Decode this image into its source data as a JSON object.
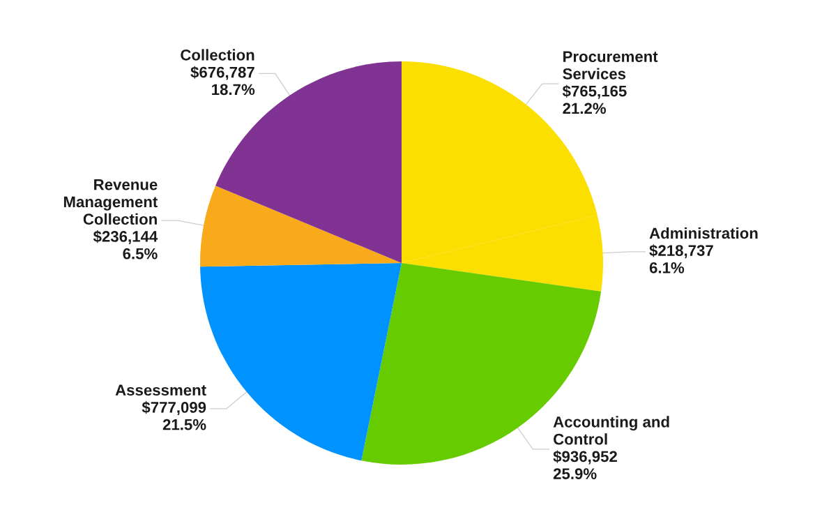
{
  "chart_data": {
    "type": "pie",
    "categories": [
      "Procurement\nServices",
      "Administration",
      "Accounting and\nControl",
      "Assessment",
      "Revenue\nManagement\nCollection",
      "Collection"
    ],
    "values": [
      765165,
      218737,
      936952,
      777099,
      236144,
      676787
    ],
    "colors": [
      "#fbdf00",
      "#fbdf00",
      "#66cc00",
      "#0092ff",
      "#f9aa1b",
      "#803392"
    ],
    "value_labels": [
      "$765,165\n21.2%",
      "$218,737\n6.1%",
      "$936,952\n25.9%",
      "$777,099\n21.5%",
      "$236,144\n6.5%",
      "$676,787\n18.7%"
    ]
  }
}
